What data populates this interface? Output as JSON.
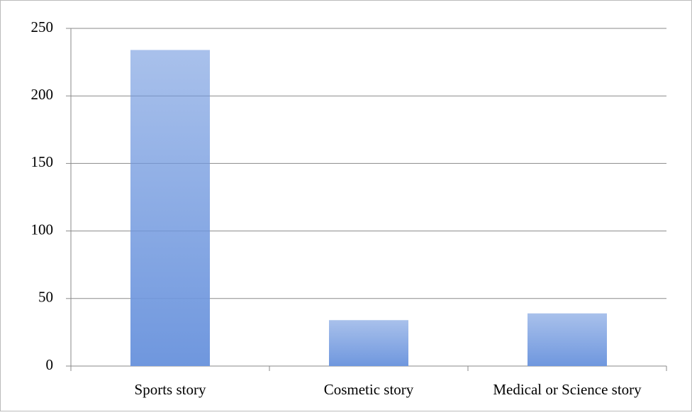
{
  "chart_data": {
    "type": "bar",
    "categories": [
      "Sports story",
      "Cosmetic story",
      "Medical or Science story"
    ],
    "values": [
      234,
      34,
      39
    ],
    "color": "#6f97de",
    "ylim": [
      0,
      250
    ],
    "yticks": [
      0,
      50,
      100,
      150,
      200,
      250
    ],
    "grid": true
  }
}
